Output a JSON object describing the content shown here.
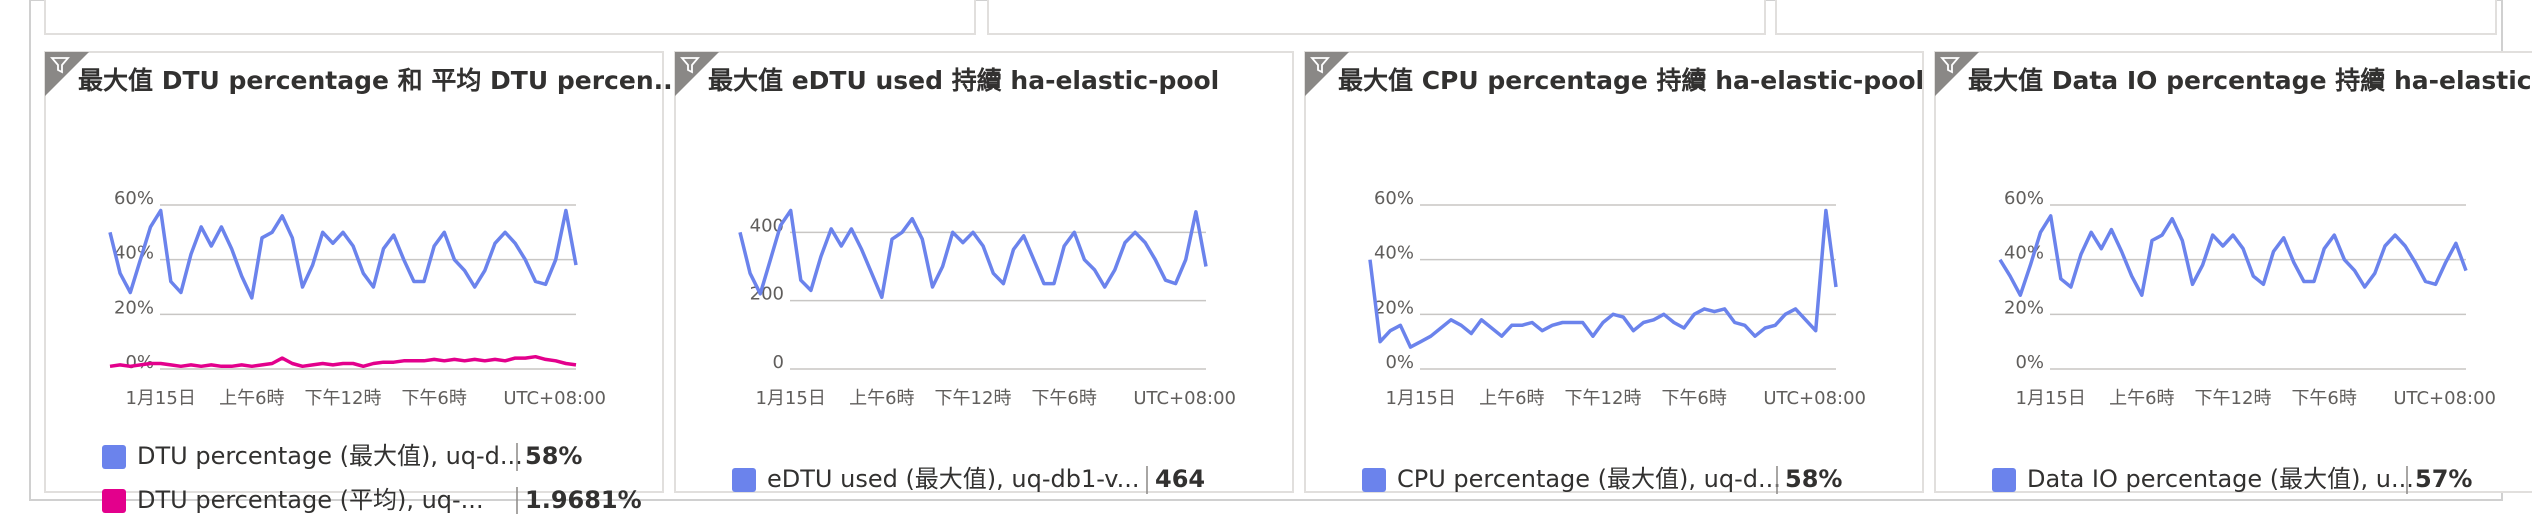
{
  "chart_data": [
    {
      "type": "line",
      "title": "最大值 DTU percentage 和 平均 DTU percen...",
      "timezone": "UTC+08:00",
      "xlim": [
        0,
        46
      ],
      "xticks": [
        {
          "value": 5,
          "label": "1月15日"
        },
        {
          "value": 14,
          "label": "上午6時"
        },
        {
          "value": 23,
          "label": "下午12時"
        },
        {
          "value": 32,
          "label": "下午6時"
        }
      ],
      "ylim": [
        0,
        60
      ],
      "yticks": [
        {
          "value": 0,
          "label": "0%"
        },
        {
          "value": 20,
          "label": "20%"
        },
        {
          "value": 40,
          "label": "40%"
        },
        {
          "value": 60,
          "label": "60%"
        }
      ],
      "grid": true,
      "series": [
        {
          "name": "DTU percentage (最大值), uq-d...",
          "color": "#6b83ec",
          "summary_label": "58%",
          "values": [
            50,
            35,
            28,
            40,
            52,
            58,
            32,
            28,
            42,
            52,
            45,
            52,
            44,
            34,
            26,
            48,
            50,
            56,
            48,
            30,
            38,
            50,
            46,
            50,
            45,
            35,
            30,
            44,
            49,
            40,
            32,
            32,
            45,
            50,
            40,
            36,
            30,
            36,
            46,
            50,
            46,
            40,
            32,
            31,
            40,
            58,
            38
          ]
        },
        {
          "name": "DTU percentage (平均), uq-...",
          "color": "#e3008c",
          "summary_label": "1.9681%",
          "values": [
            1,
            1.5,
            1,
            1.5,
            2,
            2,
            1.5,
            1,
            1.5,
            1,
            1.5,
            1,
            1,
            1.5,
            1,
            1.5,
            2,
            4,
            2,
            1,
            1.5,
            2,
            1.5,
            2,
            2,
            1,
            2,
            2.5,
            2.5,
            3,
            3,
            3,
            3.5,
            3,
            3.5,
            3,
            3.5,
            3,
            3.5,
            3,
            4,
            4,
            4.5,
            3.5,
            3,
            2,
            1.5
          ]
        }
      ]
    },
    {
      "type": "line",
      "title": "最大值 eDTU used 持續 ha-elastic-pool",
      "timezone": "UTC+08:00",
      "xlim": [
        0,
        46
      ],
      "xticks": [
        {
          "value": 5,
          "label": "1月15日"
        },
        {
          "value": 14,
          "label": "上午6時"
        },
        {
          "value": 23,
          "label": "下午12時"
        },
        {
          "value": 32,
          "label": "下午6時"
        }
      ],
      "ylim": [
        0,
        480
      ],
      "yticks": [
        0,
        200,
        400
      ],
      "grid": true,
      "series": [
        {
          "name": "eDTU used (最大值), uq-db1-v...",
          "color": "#6b83ec",
          "summary_label": "464",
          "values": [
            400,
            280,
            220,
            320,
            420,
            464,
            260,
            230,
            330,
            410,
            360,
            410,
            350,
            280,
            210,
            380,
            400,
            440,
            380,
            240,
            300,
            400,
            370,
            400,
            360,
            280,
            250,
            350,
            390,
            320,
            250,
            250,
            360,
            400,
            320,
            290,
            240,
            290,
            370,
            400,
            370,
            320,
            260,
            250,
            320,
            460,
            300
          ]
        }
      ]
    },
    {
      "type": "line",
      "title": "最大值 CPU percentage 持續 ha-elastic-pool",
      "timezone": "UTC+08:00",
      "xlim": [
        0,
        46
      ],
      "xticks": [
        {
          "value": 5,
          "label": "1月15日"
        },
        {
          "value": 14,
          "label": "上午6時"
        },
        {
          "value": 23,
          "label": "下午12時"
        },
        {
          "value": 32,
          "label": "下午6時"
        }
      ],
      "ylim": [
        0,
        60
      ],
      "yticks": [
        {
          "value": 0,
          "label": "0%"
        },
        {
          "value": 20,
          "label": "20%"
        },
        {
          "value": 40,
          "label": "40%"
        },
        {
          "value": 60,
          "label": "60%"
        }
      ],
      "grid": true,
      "series": [
        {
          "name": "CPU percentage (最大值), uq-d...",
          "color": "#6b83ec",
          "summary_label": "58%",
          "values": [
            40,
            10,
            14,
            16,
            8,
            10,
            12,
            15,
            18,
            16,
            13,
            18,
            15,
            12,
            16,
            16,
            17,
            14,
            16,
            17,
            17,
            17,
            12,
            17,
            20,
            19,
            14,
            17,
            18,
            20,
            17,
            15,
            20,
            22,
            21,
            22,
            17,
            16,
            12,
            15,
            16,
            20,
            22,
            18,
            14,
            58,
            30
          ]
        }
      ]
    },
    {
      "type": "line",
      "title": "最大值 Data IO percentage 持續 ha-elastic-...",
      "timezone": "UTC+08:00",
      "xlim": [
        0,
        46
      ],
      "xticks": [
        {
          "value": 5,
          "label": "1月15日"
        },
        {
          "value": 14,
          "label": "上午6時"
        },
        {
          "value": 23,
          "label": "下午12時"
        },
        {
          "value": 32,
          "label": "下午6時"
        }
      ],
      "ylim": [
        0,
        60
      ],
      "yticks": [
        {
          "value": 0,
          "label": "0%"
        },
        {
          "value": 20,
          "label": "20%"
        },
        {
          "value": 40,
          "label": "40%"
        },
        {
          "value": 60,
          "label": "60%"
        }
      ],
      "grid": true,
      "series": [
        {
          "name": "Data IO percentage (最大值), u...",
          "color": "#6b83ec",
          "summary_label": "57%",
          "values": [
            40,
            34,
            27,
            38,
            50,
            56,
            33,
            30,
            42,
            50,
            44,
            51,
            43,
            34,
            27,
            47,
            49,
            55,
            47,
            31,
            38,
            49,
            45,
            49,
            44,
            34,
            31,
            43,
            48,
            39,
            32,
            32,
            44,
            49,
            40,
            36,
            30,
            35,
            45,
            49,
            45,
            39,
            32,
            31,
            39,
            46,
            36
          ]
        }
      ]
    }
  ]
}
